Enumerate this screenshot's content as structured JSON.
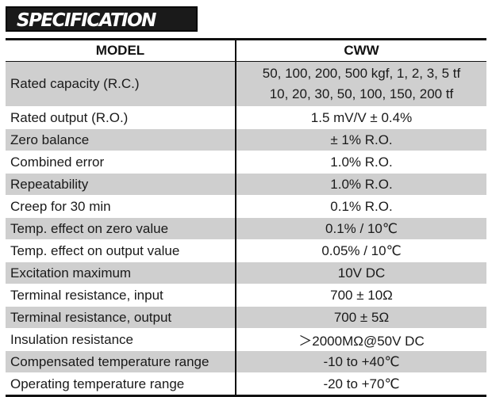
{
  "section_title": "SPECIFICATION",
  "table": {
    "header": {
      "model_label": "MODEL",
      "model_value": "CWW"
    },
    "rated_capacity": {
      "label": "Rated capacity (R.C.)",
      "line1": "50, 100, 200, 500 kgf, 1, 2, 3, 5 tf",
      "line2": "10, 20, 30, 50, 100, 150, 200 tf"
    },
    "rows": [
      {
        "label": "Rated output (R.O.)",
        "value": "1.5 mV/V ± 0.4%"
      },
      {
        "label": "Zero balance",
        "value": "± 1% R.O."
      },
      {
        "label": "Combined error",
        "value": "1.0% R.O."
      },
      {
        "label": "Repeatability",
        "value": "1.0% R.O."
      },
      {
        "label": "Creep for 30 min",
        "value": "0.1% R.O."
      },
      {
        "label": "Temp. effect on zero value",
        "value": "0.1% / 10℃"
      },
      {
        "label": "Temp. effect on output value",
        "value": "0.05% / 10℃"
      },
      {
        "label": "Excitation maximum",
        "value": "10V DC"
      },
      {
        "label": "Terminal resistance, input",
        "value": "700 ± 10Ω"
      },
      {
        "label": "Terminal resistance, output",
        "value": "700 ± 5Ω"
      },
      {
        "label": "Insulation resistance",
        "value": "＞2000MΩ@50V DC"
      },
      {
        "label": "Compensated temperature range",
        "value": "-10 to +40℃"
      },
      {
        "label": "Operating temperature range",
        "value": "-20 to +70℃"
      }
    ]
  },
  "colors": {
    "shaded_row": "#cfcfcf",
    "plain_row": "#ffffff",
    "banner_bg": "#1a1a1a",
    "banner_text": "#ffffff"
  }
}
